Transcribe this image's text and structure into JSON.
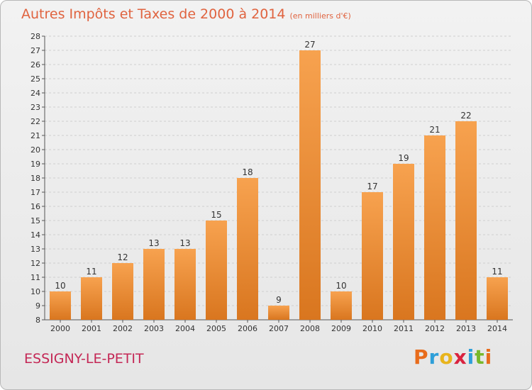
{
  "header": {
    "title": "Autres Impôts et Taxes de 2000 à 2014",
    "unit": "(en milliers d'€)"
  },
  "footer": {
    "commune": "ESSIGNY-LE-PETIT",
    "brand": "Proxiti",
    "brand_colors": [
      "#e86c1c",
      "#2e9fd9",
      "#e8b41c",
      "#d9233f",
      "#2e9fd9",
      "#78b82a",
      "#e86c1c"
    ]
  },
  "colors": {
    "bar_light": "#f7a24f",
    "bar_dark": "#d9761f",
    "title": "#e0633f",
    "commune": "#c42755",
    "grid": "#cfcfcf"
  },
  "chart_data": {
    "type": "bar",
    "title": "Autres Impôts et Taxes de 2000 à 2014",
    "subtitle": "(en milliers d'€)",
    "categories": [
      "2000",
      "2001",
      "2002",
      "2003",
      "2004",
      "2005",
      "2006",
      "2007",
      "2008",
      "2009",
      "2010",
      "2011",
      "2012",
      "2013",
      "2014"
    ],
    "values": [
      10,
      11,
      12,
      13,
      13,
      15,
      18,
      9,
      27,
      10,
      17,
      19,
      21,
      22,
      11
    ],
    "ylim": [
      8,
      28
    ],
    "yticks": [
      8,
      9,
      10,
      11,
      12,
      13,
      14,
      15,
      16,
      17,
      18,
      19,
      20,
      21,
      22,
      23,
      24,
      25,
      26,
      27,
      28
    ],
    "grid": true,
    "xlabel": "",
    "ylabel": ""
  }
}
